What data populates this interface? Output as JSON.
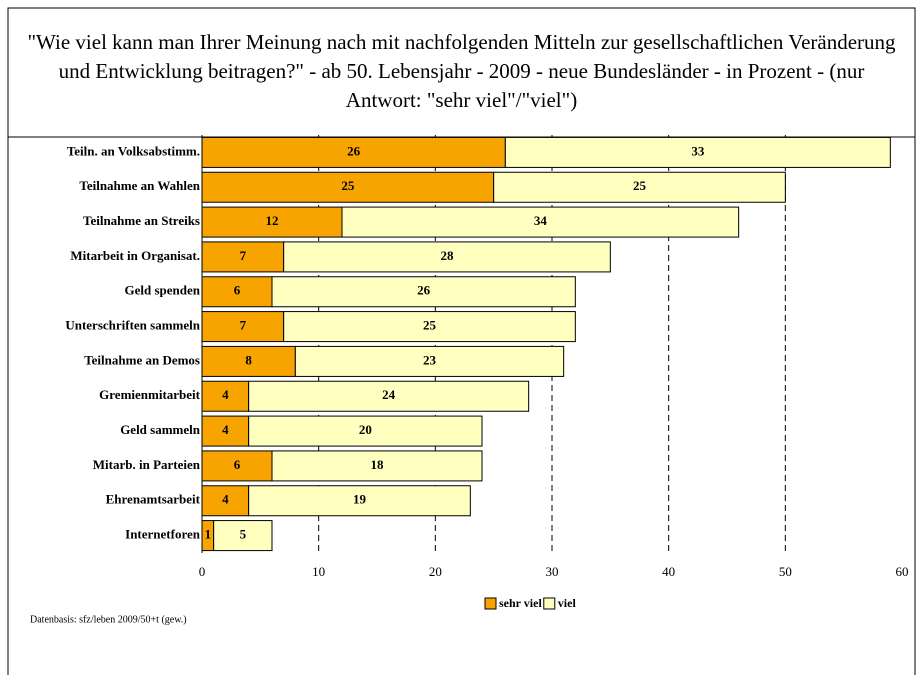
{
  "chart_data": {
    "type": "stacked_barh",
    "title": "\"Wie viel kann man Ihrer Meinung nach mit nachfolgenden Mitteln zur gesellschaftlichen Veränderung und Entwicklung beitragen?\" - ab 50. Lebensjahr - 2009 - neue Bundesländer - in Prozent - (nur Antwort: \"sehr viel\"/\"viel\")",
    "categories": [
      "Teiln. an Volksabstimm.",
      "Teilnahme an Wahlen",
      "Teilnahme an Streiks",
      "Mitarbeit in Organisat.",
      "Geld spenden",
      "Unterschriften sammeln",
      "Teilnahme an Demos",
      "Gremienmitarbeit",
      "Geld sammeln",
      "Mitarb. in Parteien",
      "Ehrenamtsarbeit",
      "Internetforen"
    ],
    "series": [
      {
        "name": "sehr viel",
        "color": "#f7a400",
        "values": [
          26,
          25,
          12,
          7,
          6,
          7,
          8,
          4,
          4,
          6,
          4,
          1
        ]
      },
      {
        "name": "viel",
        "color": "#ffffc0",
        "values": [
          33,
          25,
          34,
          28,
          26,
          25,
          23,
          24,
          20,
          18,
          19,
          5
        ]
      }
    ],
    "xlim": [
      0,
      60
    ],
    "xticks": [
      0,
      10,
      20,
      30,
      40,
      50,
      60
    ],
    "grid": true,
    "legend": "bottom",
    "note": "Datenbasis: sfz/leben 2009/50+t (gew.)"
  }
}
